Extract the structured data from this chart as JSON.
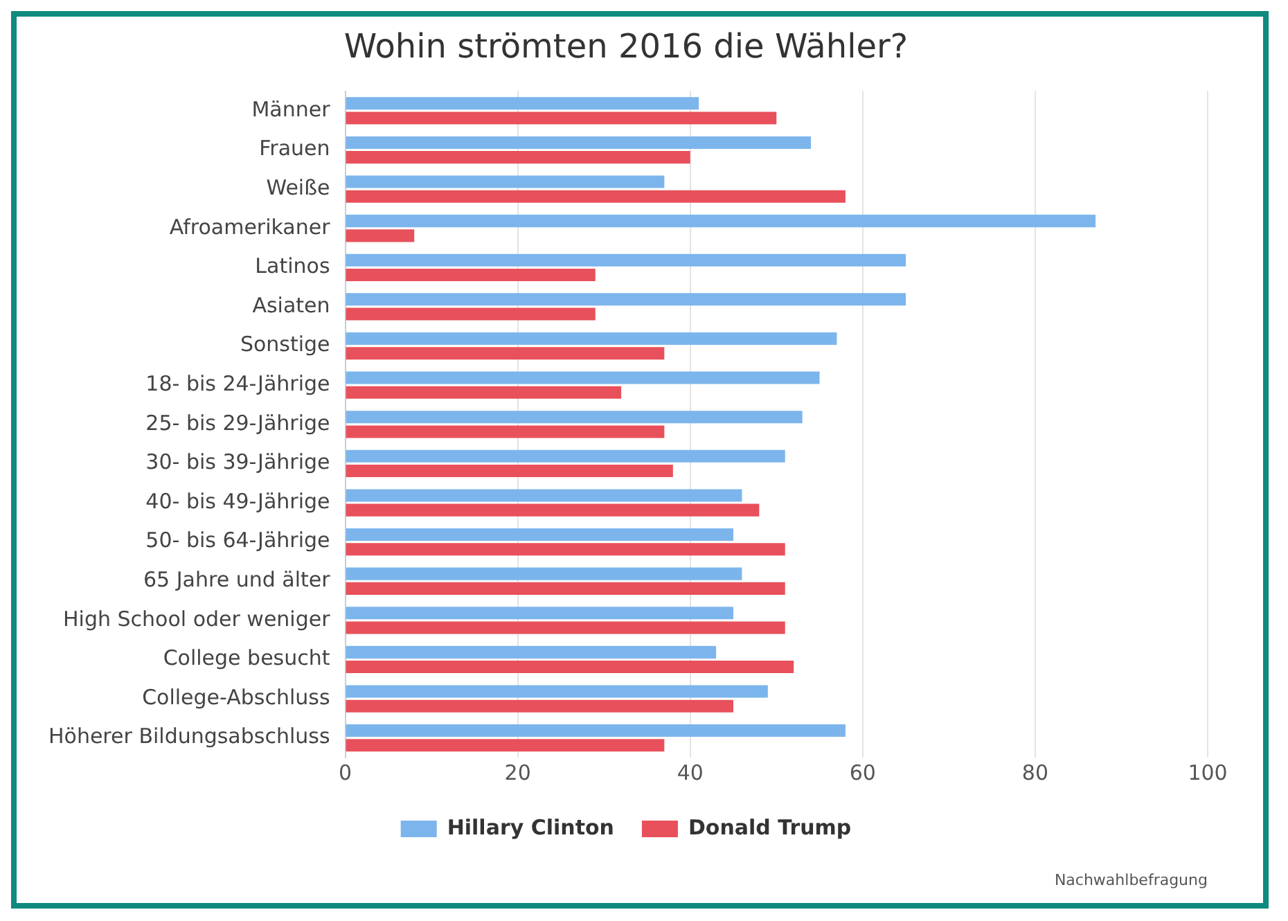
{
  "chart_data": {
    "type": "bar",
    "orientation": "horizontal",
    "title": "Wohin strömten 2016 die Wähler?",
    "categories": [
      "Männer",
      "Frauen",
      "Weiße",
      "Afroamerikaner",
      "Latinos",
      "Asiaten",
      "Sonstige",
      "18- bis 24-Jährige",
      "25- bis 29-Jährige",
      "30- bis 39-Jährige",
      "40- bis 49-Jährige",
      "50- bis 64-Jährige",
      "65 Jahre und älter",
      "High School oder weniger",
      "College besucht",
      "College-Abschluss",
      "Höherer Bildungsabschluss"
    ],
    "series": [
      {
        "name": "Hillary Clinton",
        "color": "#7cb5ec",
        "values": [
          41,
          54,
          37,
          87,
          65,
          65,
          57,
          55,
          53,
          51,
          46,
          45,
          46,
          45,
          43,
          49,
          58
        ]
      },
      {
        "name": "Donald Trump",
        "color": "#e8505b",
        "values": [
          50,
          40,
          58,
          8,
          29,
          29,
          37,
          32,
          37,
          38,
          48,
          51,
          51,
          51,
          52,
          45,
          37
        ]
      }
    ],
    "xlim": [
      0,
      100
    ],
    "xticks": [
      0,
      20,
      40,
      60,
      80,
      100
    ],
    "grid": "x",
    "legend": "bottom",
    "annotations": [
      "Nachwahlbefragung"
    ]
  }
}
